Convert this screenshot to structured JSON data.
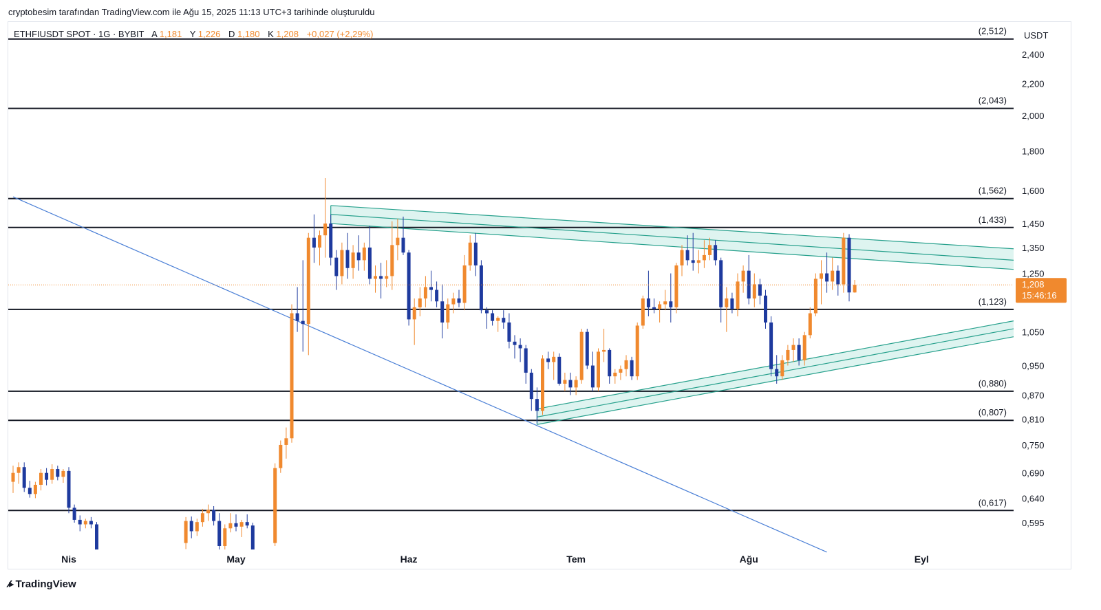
{
  "header": {
    "caption": "cryptobesim tarafından TradingView.com ile Ağu 15, 2025 11:13 UTC+3 tarihinde oluşturuldu"
  },
  "legend": {
    "symbol": "ETHFIUSDT SPOT · 1G · BYBIT",
    "open_label": "A",
    "open": "1,181",
    "high_label": "Y",
    "high": "1,226",
    "low_label": "D",
    "low": "1,180",
    "close_label": "K",
    "close": "1,208",
    "change": "+0,027 (+2,29%)"
  },
  "footer": {
    "brand": "TradingView",
    "logo_icon": "tradingview-logo-icon"
  },
  "colors": {
    "up": "#f0892e",
    "down": "#1e3a9e",
    "channel": "#26a08c",
    "channel_fill": "#d6f1ec",
    "trendline": "#4a7fd6",
    "level": "#131722",
    "last_price": "#f0892e"
  },
  "chart_data": {
    "type": "candlestick",
    "currency": "USDT",
    "x_ticks": [
      "Nis",
      "May",
      "Haz",
      "Tem",
      "Ağu",
      "Eyl"
    ],
    "y_ticks": [
      "2,400",
      "2,200",
      "2,000",
      "1,800",
      "1,600",
      "1,450",
      "1,350",
      "1,250",
      "1,050",
      "0,950",
      "0,870",
      "0,810",
      "0,750",
      "0,690",
      "0,640",
      "0,595"
    ],
    "y_log_scale": true,
    "last_price": {
      "value": 1.208,
      "label": "1,208",
      "countdown": "15:46:16"
    },
    "levels": [
      {
        "value": 2.512,
        "label": "(2,512)"
      },
      {
        "value": 2.043,
        "label": "(2,043)"
      },
      {
        "value": 1.562,
        "label": "(1,562)"
      },
      {
        "value": 1.433,
        "label": "(1,433)"
      },
      {
        "value": 1.123,
        "label": "(1,123)"
      },
      {
        "value": 0.88,
        "label": "(0,880)"
      },
      {
        "value": 0.807,
        "label": "(0,807)"
      },
      {
        "value": 0.617,
        "label": "(0,617)"
      }
    ],
    "candles": [
      {
        "d": "2025-03-22",
        "o": 0.672,
        "h": 0.705,
        "l": 0.65,
        "c": 0.69
      },
      {
        "d": "2025-03-23",
        "o": 0.69,
        "h": 0.712,
        "l": 0.668,
        "c": 0.702
      },
      {
        "d": "2025-03-24",
        "o": 0.702,
        "h": 0.712,
        "l": 0.652,
        "c": 0.66
      },
      {
        "d": "2025-03-25",
        "o": 0.66,
        "h": 0.674,
        "l": 0.641,
        "c": 0.648
      },
      {
        "d": "2025-03-26",
        "o": 0.648,
        "h": 0.672,
        "l": 0.64,
        "c": 0.666
      },
      {
        "d": "2025-03-27",
        "o": 0.666,
        "h": 0.698,
        "l": 0.655,
        "c": 0.69
      },
      {
        "d": "2025-03-28",
        "o": 0.69,
        "h": 0.7,
        "l": 0.665,
        "c": 0.676
      },
      {
        "d": "2025-03-29",
        "o": 0.676,
        "h": 0.708,
        "l": 0.668,
        "c": 0.698
      },
      {
        "d": "2025-03-30",
        "o": 0.698,
        "h": 0.705,
        "l": 0.675,
        "c": 0.682
      },
      {
        "d": "2025-03-31",
        "o": 0.682,
        "h": 0.698,
        "l": 0.67,
        "c": 0.694
      },
      {
        "d": "2025-04-01",
        "o": 0.694,
        "h": 0.702,
        "l": 0.612,
        "c": 0.622
      },
      {
        "d": "2025-04-02",
        "o": 0.622,
        "h": 0.628,
        "l": 0.595,
        "c": 0.6
      },
      {
        "d": "2025-04-03",
        "o": 0.6,
        "h": 0.608,
        "l": 0.58,
        "c": 0.592
      },
      {
        "d": "2025-04-04",
        "o": 0.592,
        "h": 0.602,
        "l": 0.585,
        "c": 0.598
      },
      {
        "d": "2025-04-05",
        "o": 0.598,
        "h": 0.605,
        "l": 0.585,
        "c": 0.592
      },
      {
        "d": "2025-04-06",
        "o": 0.592,
        "h": 0.596,
        "l": 0.54,
        "c": 0.545
      },
      {
        "d": "2025-04-22",
        "o": 0.56,
        "h": 0.605,
        "l": 0.55,
        "c": 0.598
      },
      {
        "d": "2025-04-23",
        "o": 0.598,
        "h": 0.606,
        "l": 0.568,
        "c": 0.58
      },
      {
        "d": "2025-04-24",
        "o": 0.58,
        "h": 0.602,
        "l": 0.572,
        "c": 0.596
      },
      {
        "d": "2025-04-25",
        "o": 0.596,
        "h": 0.62,
        "l": 0.588,
        "c": 0.612
      },
      {
        "d": "2025-04-26",
        "o": 0.612,
        "h": 0.628,
        "l": 0.598,
        "c": 0.618
      },
      {
        "d": "2025-04-27",
        "o": 0.618,
        "h": 0.625,
        "l": 0.59,
        "c": 0.598
      },
      {
        "d": "2025-04-28",
        "o": 0.598,
        "h": 0.612,
        "l": 0.548,
        "c": 0.555
      },
      {
        "d": "2025-04-29",
        "o": 0.555,
        "h": 0.592,
        "l": 0.548,
        "c": 0.585
      },
      {
        "d": "2025-04-30",
        "o": 0.585,
        "h": 0.612,
        "l": 0.578,
        "c": 0.594
      },
      {
        "d": "2025-05-01",
        "o": 0.594,
        "h": 0.61,
        "l": 0.58,
        "c": 0.588
      },
      {
        "d": "2025-05-02",
        "o": 0.588,
        "h": 0.6,
        "l": 0.57,
        "c": 0.596
      },
      {
        "d": "2025-05-03",
        "o": 0.596,
        "h": 0.61,
        "l": 0.585,
        "c": 0.59
      },
      {
        "d": "2025-05-04",
        "o": 0.59,
        "h": 0.595,
        "l": 0.54,
        "c": 0.548
      },
      {
        "d": "2025-05-08",
        "o": 0.56,
        "h": 0.71,
        "l": 0.555,
        "c": 0.7
      },
      {
        "d": "2025-05-09",
        "o": 0.7,
        "h": 0.76,
        "l": 0.69,
        "c": 0.75
      },
      {
        "d": "2025-05-10",
        "o": 0.75,
        "h": 0.79,
        "l": 0.72,
        "c": 0.765
      },
      {
        "d": "2025-05-11",
        "o": 0.765,
        "h": 1.14,
        "l": 0.755,
        "c": 1.11
      },
      {
        "d": "2025-05-12",
        "o": 1.11,
        "h": 1.2,
        "l": 1.05,
        "c": 1.085
      },
      {
        "d": "2025-05-13",
        "o": 1.085,
        "h": 1.3,
        "l": 0.99,
        "c": 1.075
      },
      {
        "d": "2025-05-14",
        "o": 1.075,
        "h": 1.41,
        "l": 0.98,
        "c": 1.39
      },
      {
        "d": "2025-05-15",
        "o": 1.39,
        "h": 1.49,
        "l": 1.29,
        "c": 1.35
      },
      {
        "d": "2025-05-16",
        "o": 1.35,
        "h": 1.42,
        "l": 1.28,
        "c": 1.4
      },
      {
        "d": "2025-05-17",
        "o": 1.4,
        "h": 1.66,
        "l": 1.31,
        "c": 1.45
      },
      {
        "d": "2025-05-18",
        "o": 1.45,
        "h": 1.49,
        "l": 1.28,
        "c": 1.31
      },
      {
        "d": "2025-05-19",
        "o": 1.31,
        "h": 1.34,
        "l": 1.19,
        "c": 1.24
      },
      {
        "d": "2025-05-20",
        "o": 1.24,
        "h": 1.37,
        "l": 1.21,
        "c": 1.34
      },
      {
        "d": "2025-05-21",
        "o": 1.34,
        "h": 1.41,
        "l": 1.23,
        "c": 1.27
      },
      {
        "d": "2025-05-22",
        "o": 1.27,
        "h": 1.36,
        "l": 1.23,
        "c": 1.33
      },
      {
        "d": "2025-05-23",
        "o": 1.33,
        "h": 1.4,
        "l": 1.26,
        "c": 1.3
      },
      {
        "d": "2025-05-24",
        "o": 1.3,
        "h": 1.37,
        "l": 1.26,
        "c": 1.35
      },
      {
        "d": "2025-05-25",
        "o": 1.35,
        "h": 1.44,
        "l": 1.21,
        "c": 1.23
      },
      {
        "d": "2025-05-26",
        "o": 1.23,
        "h": 1.28,
        "l": 1.18,
        "c": 1.24
      },
      {
        "d": "2025-05-27",
        "o": 1.24,
        "h": 1.29,
        "l": 1.16,
        "c": 1.23
      },
      {
        "d": "2025-05-28",
        "o": 1.23,
        "h": 1.3,
        "l": 1.2,
        "c": 1.24
      },
      {
        "d": "2025-05-29",
        "o": 1.24,
        "h": 1.46,
        "l": 1.19,
        "c": 1.36
      },
      {
        "d": "2025-05-30",
        "o": 1.36,
        "h": 1.47,
        "l": 1.3,
        "c": 1.39
      },
      {
        "d": "2025-05-31",
        "o": 1.39,
        "h": 1.48,
        "l": 1.32,
        "c": 1.33
      },
      {
        "d": "2025-06-01",
        "o": 1.33,
        "h": 1.34,
        "l": 1.07,
        "c": 1.09
      },
      {
        "d": "2025-06-02",
        "o": 1.09,
        "h": 1.16,
        "l": 1.01,
        "c": 1.13
      },
      {
        "d": "2025-06-03",
        "o": 1.13,
        "h": 1.2,
        "l": 1.1,
        "c": 1.16
      },
      {
        "d": "2025-06-04",
        "o": 1.16,
        "h": 1.24,
        "l": 1.13,
        "c": 1.2
      },
      {
        "d": "2025-06-05",
        "o": 1.2,
        "h": 1.26,
        "l": 1.15,
        "c": 1.19
      },
      {
        "d": "2025-06-06",
        "o": 1.19,
        "h": 1.22,
        "l": 1.13,
        "c": 1.15
      },
      {
        "d": "2025-06-07",
        "o": 1.15,
        "h": 1.21,
        "l": 1.03,
        "c": 1.08
      },
      {
        "d": "2025-06-08",
        "o": 1.08,
        "h": 1.16,
        "l": 1.06,
        "c": 1.14
      },
      {
        "d": "2025-06-09",
        "o": 1.14,
        "h": 1.18,
        "l": 1.11,
        "c": 1.16
      },
      {
        "d": "2025-06-10",
        "o": 1.16,
        "h": 1.19,
        "l": 1.13,
        "c": 1.145
      },
      {
        "d": "2025-06-11",
        "o": 1.145,
        "h": 1.32,
        "l": 1.12,
        "c": 1.28
      },
      {
        "d": "2025-06-12",
        "o": 1.28,
        "h": 1.4,
        "l": 1.26,
        "c": 1.37
      },
      {
        "d": "2025-06-13",
        "o": 1.37,
        "h": 1.41,
        "l": 1.24,
        "c": 1.28
      },
      {
        "d": "2025-06-14",
        "o": 1.28,
        "h": 1.3,
        "l": 1.11,
        "c": 1.12
      },
      {
        "d": "2025-06-15",
        "o": 1.12,
        "h": 1.13,
        "l": 1.06,
        "c": 1.11
      },
      {
        "d": "2025-06-16",
        "o": 1.11,
        "h": 1.12,
        "l": 1.07,
        "c": 1.085
      },
      {
        "d": "2025-06-17",
        "o": 1.085,
        "h": 1.1,
        "l": 1.05,
        "c": 1.095
      },
      {
        "d": "2025-06-18",
        "o": 1.095,
        "h": 1.12,
        "l": 1.06,
        "c": 1.08
      },
      {
        "d": "2025-06-19",
        "o": 1.08,
        "h": 1.11,
        "l": 1.0,
        "c": 1.02
      },
      {
        "d": "2025-06-20",
        "o": 1.02,
        "h": 1.04,
        "l": 0.97,
        "c": 1.01
      },
      {
        "d": "2025-06-21",
        "o": 1.01,
        "h": 1.03,
        "l": 0.96,
        "c": 1.0
      },
      {
        "d": "2025-06-22",
        "o": 1.0,
        "h": 1.01,
        "l": 0.9,
        "c": 0.93
      },
      {
        "d": "2025-06-23",
        "o": 0.93,
        "h": 0.94,
        "l": 0.83,
        "c": 0.86
      },
      {
        "d": "2025-06-24",
        "o": 0.86,
        "h": 0.89,
        "l": 0.8,
        "c": 0.83
      },
      {
        "d": "2025-06-25",
        "o": 0.83,
        "h": 0.98,
        "l": 0.82,
        "c": 0.97
      },
      {
        "d": "2025-06-26",
        "o": 0.97,
        "h": 0.99,
        "l": 0.94,
        "c": 0.96
      },
      {
        "d": "2025-06-27",
        "o": 0.96,
        "h": 0.99,
        "l": 0.91,
        "c": 0.975
      },
      {
        "d": "2025-06-28",
        "o": 0.975,
        "h": 0.985,
        "l": 0.895,
        "c": 0.9
      },
      {
        "d": "2025-06-29",
        "o": 0.9,
        "h": 0.93,
        "l": 0.88,
        "c": 0.91
      },
      {
        "d": "2025-06-30",
        "o": 0.91,
        "h": 0.93,
        "l": 0.87,
        "c": 0.89
      },
      {
        "d": "2025-07-01",
        "o": 0.89,
        "h": 0.92,
        "l": 0.87,
        "c": 0.91
      },
      {
        "d": "2025-07-02",
        "o": 0.91,
        "h": 1.06,
        "l": 0.9,
        "c": 1.05
      },
      {
        "d": "2025-07-03",
        "o": 1.05,
        "h": 1.06,
        "l": 0.94,
        "c": 0.95
      },
      {
        "d": "2025-07-04",
        "o": 0.95,
        "h": 0.99,
        "l": 0.88,
        "c": 0.89
      },
      {
        "d": "2025-07-05",
        "o": 0.89,
        "h": 1.0,
        "l": 0.88,
        "c": 0.99
      },
      {
        "d": "2025-07-06",
        "o": 0.99,
        "h": 1.06,
        "l": 0.96,
        "c": 0.995
      },
      {
        "d": "2025-07-07",
        "o": 0.995,
        "h": 1.0,
        "l": 0.9,
        "c": 0.92
      },
      {
        "d": "2025-07-08",
        "o": 0.92,
        "h": 0.94,
        "l": 0.9,
        "c": 0.93
      },
      {
        "d": "2025-07-09",
        "o": 0.93,
        "h": 0.95,
        "l": 0.91,
        "c": 0.94
      },
      {
        "d": "2025-07-10",
        "o": 0.94,
        "h": 0.98,
        "l": 0.92,
        "c": 0.965
      },
      {
        "d": "2025-07-11",
        "o": 0.965,
        "h": 0.975,
        "l": 0.91,
        "c": 0.92
      },
      {
        "d": "2025-07-12",
        "o": 0.92,
        "h": 1.08,
        "l": 0.91,
        "c": 1.07
      },
      {
        "d": "2025-07-13",
        "o": 1.07,
        "h": 1.17,
        "l": 1.06,
        "c": 1.16
      },
      {
        "d": "2025-07-14",
        "o": 1.16,
        "h": 1.26,
        "l": 1.1,
        "c": 1.13
      },
      {
        "d": "2025-07-15",
        "o": 1.13,
        "h": 1.16,
        "l": 1.11,
        "c": 1.125
      },
      {
        "d": "2025-07-16",
        "o": 1.125,
        "h": 1.15,
        "l": 1.08,
        "c": 1.14
      },
      {
        "d": "2025-07-17",
        "o": 1.14,
        "h": 1.19,
        "l": 1.12,
        "c": 1.15
      },
      {
        "d": "2025-07-18",
        "o": 1.15,
        "h": 1.25,
        "l": 1.08,
        "c": 1.13
      },
      {
        "d": "2025-07-19",
        "o": 1.13,
        "h": 1.29,
        "l": 1.11,
        "c": 1.28
      },
      {
        "d": "2025-07-20",
        "o": 1.28,
        "h": 1.36,
        "l": 1.24,
        "c": 1.34
      },
      {
        "d": "2025-07-21",
        "o": 1.34,
        "h": 1.4,
        "l": 1.28,
        "c": 1.3
      },
      {
        "d": "2025-07-22",
        "o": 1.3,
        "h": 1.41,
        "l": 1.26,
        "c": 1.29
      },
      {
        "d": "2025-07-23",
        "o": 1.29,
        "h": 1.34,
        "l": 1.25,
        "c": 1.3
      },
      {
        "d": "2025-07-24",
        "o": 1.3,
        "h": 1.38,
        "l": 1.27,
        "c": 1.32
      },
      {
        "d": "2025-07-25",
        "o": 1.32,
        "h": 1.39,
        "l": 1.3,
        "c": 1.36
      },
      {
        "d": "2025-07-26",
        "o": 1.36,
        "h": 1.38,
        "l": 1.28,
        "c": 1.3
      },
      {
        "d": "2025-07-27",
        "o": 1.3,
        "h": 1.31,
        "l": 1.08,
        "c": 1.13
      },
      {
        "d": "2025-07-28",
        "o": 1.13,
        "h": 1.2,
        "l": 1.05,
        "c": 1.16
      },
      {
        "d": "2025-07-29",
        "o": 1.16,
        "h": 1.18,
        "l": 1.11,
        "c": 1.125
      },
      {
        "d": "2025-07-30",
        "o": 1.125,
        "h": 1.25,
        "l": 1.1,
        "c": 1.22
      },
      {
        "d": "2025-07-31",
        "o": 1.22,
        "h": 1.28,
        "l": 1.18,
        "c": 1.26
      },
      {
        "d": "2025-08-01",
        "o": 1.26,
        "h": 1.32,
        "l": 1.14,
        "c": 1.16
      },
      {
        "d": "2025-08-02",
        "o": 1.16,
        "h": 1.25,
        "l": 1.13,
        "c": 1.21
      },
      {
        "d": "2025-08-03",
        "o": 1.21,
        "h": 1.23,
        "l": 1.14,
        "c": 1.17
      },
      {
        "d": "2025-08-04",
        "o": 1.17,
        "h": 1.19,
        "l": 1.06,
        "c": 1.08
      },
      {
        "d": "2025-08-05",
        "o": 1.08,
        "h": 1.1,
        "l": 0.92,
        "c": 0.94
      },
      {
        "d": "2025-08-06",
        "o": 0.94,
        "h": 0.98,
        "l": 0.9,
        "c": 0.92
      },
      {
        "d": "2025-08-07",
        "o": 0.92,
        "h": 0.98,
        "l": 0.91,
        "c": 0.965
      },
      {
        "d": "2025-08-08",
        "o": 0.965,
        "h": 1.01,
        "l": 0.95,
        "c": 0.995
      },
      {
        "d": "2025-08-09",
        "o": 0.995,
        "h": 1.03,
        "l": 0.96,
        "c": 1.01
      },
      {
        "d": "2025-08-10",
        "o": 1.01,
        "h": 1.03,
        "l": 0.95,
        "c": 0.965
      },
      {
        "d": "2025-08-11",
        "o": 0.965,
        "h": 1.05,
        "l": 0.95,
        "c": 1.04
      },
      {
        "d": "2025-08-12",
        "o": 1.04,
        "h": 1.13,
        "l": 1.03,
        "c": 1.11
      },
      {
        "d": "2025-08-13",
        "o": 1.11,
        "h": 1.25,
        "l": 1.1,
        "c": 1.23
      },
      {
        "d": "2025-08-14",
        "o": 1.23,
        "h": 1.3,
        "l": 1.14,
        "c": 1.25
      },
      {
        "d": "2025-08-15",
        "o": 1.25,
        "h": 1.33,
        "l": 1.18,
        "c": 1.22
      },
      {
        "d": "2025-08-16",
        "o": 1.22,
        "h": 1.31,
        "l": 1.19,
        "c": 1.26
      },
      {
        "d": "2025-08-17",
        "o": 1.26,
        "h": 1.28,
        "l": 1.17,
        "c": 1.21
      },
      {
        "d": "2025-08-18",
        "o": 1.21,
        "h": 1.41,
        "l": 1.18,
        "c": 1.39
      },
      {
        "d": "2025-08-19",
        "o": 1.39,
        "h": 1.405,
        "l": 1.15,
        "c": 1.181
      },
      {
        "d": "2025-08-20",
        "o": 1.181,
        "h": 1.226,
        "l": 1.18,
        "c": 1.208
      }
    ],
    "drawings": {
      "descending_trendline": [
        {
          "d": "2025-03-22",
          "v": 1.57
        },
        {
          "d": "2025-08-15",
          "v": 0.545
        }
      ],
      "upper_channel": {
        "from_date": "2025-05-18",
        "to_date": "2025-09-25",
        "lines": [
          [
            1.53,
            1.345
          ],
          [
            1.49,
            1.3
          ],
          [
            1.45,
            1.265
          ]
        ]
      },
      "lower_channel": {
        "from_date": "2025-06-24",
        "to_date": "2025-09-25",
        "lines": [
          [
            0.835,
            1.085
          ],
          [
            0.815,
            1.06
          ],
          [
            0.797,
            1.035
          ]
        ]
      }
    }
  }
}
